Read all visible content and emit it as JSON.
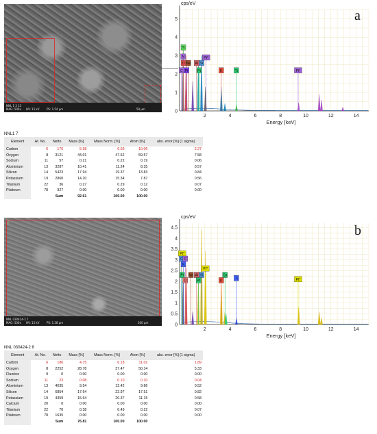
{
  "panel_a": {
    "letter": "a",
    "sem": {
      "footer": [
        "NNL 1 3 13",
        "MAG: 500x",
        "HV: 15 kV",
        "PS: 1.54 µm"
      ],
      "scale": "50 µm"
    },
    "table_caption": "NNL1 7",
    "headers": [
      "Element",
      "At. No.",
      "Netto",
      "Mass [%]",
      "Mass Norm. [%]",
      "Atom [%]",
      "abs. error [%] (1 sigma)"
    ],
    "rows": [
      {
        "el": "Carbon",
        "z": "6",
        "netto": "176",
        "mass": "5.58",
        "norm": "6.03",
        "atom": "10.06",
        "err": "2.27",
        "red": true
      },
      {
        "el": "Oxygen",
        "z": "8",
        "netto": "3121",
        "mass": "44.01",
        "norm": "47.52",
        "atom": "59.57",
        "err": "7.58",
        "red": false
      },
      {
        "el": "Sodium",
        "z": "11",
        "netto": "57",
        "mass": "0.21",
        "norm": "0.22",
        "atom": "0.19",
        "err": "0.06",
        "red": false
      },
      {
        "el": "Aluminium",
        "z": "13",
        "netto": "3287",
        "mass": "10.41",
        "norm": "11.24",
        "atom": "8.35",
        "err": "0.57",
        "red": false
      },
      {
        "el": "Silicon",
        "z": "14",
        "netto": "5423",
        "mass": "17.94",
        "norm": "19.37",
        "atom": "13.83",
        "err": "0.84",
        "red": false
      },
      {
        "el": "Potassium",
        "z": "19",
        "netto": "2860",
        "mass": "14.20",
        "norm": "15.34",
        "atom": "7.87",
        "err": "0.56",
        "red": false
      },
      {
        "el": "Titanium",
        "z": "22",
        "netto": "36",
        "mass": "0.27",
        "norm": "0.29",
        "atom": "0.12",
        "err": "0.07",
        "red": false
      },
      {
        "el": "Platinum",
        "z": "78",
        "netto": "927",
        "mass": "0.00",
        "norm": "0.00",
        "atom": "0.00",
        "err": "0.00",
        "red": false
      }
    ],
    "sum": {
      "label": "Sum",
      "mass": "92.61",
      "norm": "100.00",
      "atom": "100.00"
    }
  },
  "panel_b": {
    "letter": "b",
    "sem": {
      "footer": [
        "NNL 030424-2 7",
        "MAG: 500x",
        "HV: 15 kV",
        "PS: 1.38 µm"
      ],
      "scale": "200 µm"
    },
    "table_caption": "NNL 030424-2 8",
    "headers": [
      "Element",
      "At. No.",
      "Netto",
      "Mass [%]",
      "Mass Norm. [%]",
      "Atom [%]",
      "abs. error [%] (1 sigma)"
    ],
    "rows": [
      {
        "el": "Carbon",
        "z": "6",
        "netto": "186",
        "mass": "4.75",
        "norm": "6.18",
        "atom": "11.02",
        "err": "1.89",
        "red": true
      },
      {
        "el": "Oxygen",
        "z": "8",
        "netto": "2252",
        "mass": "28.78",
        "norm": "37.47",
        "atom": "50.14",
        "err": "5.33",
        "red": false
      },
      {
        "el": "Fluorine",
        "z": "9",
        "netto": "0",
        "mass": "0.00",
        "norm": "0.00",
        "atom": "0.00",
        "err": "0.00",
        "red": false
      },
      {
        "el": "Sodium",
        "z": "11",
        "netto": "23",
        "mass": "0.08",
        "norm": "0.10",
        "atom": "0.10",
        "err": "0.04",
        "red": true
      },
      {
        "el": "Aluminium",
        "z": "13",
        "netto": "4035",
        "mass": "9.54",
        "norm": "12.42",
        "atom": "9.86",
        "err": "0.52",
        "red": false
      },
      {
        "el": "Silicon",
        "z": "14",
        "netto": "6854",
        "mass": "17.64",
        "norm": "22.97",
        "atom": "17.51",
        "err": "0.82",
        "red": false
      },
      {
        "el": "Potassium",
        "z": "19",
        "netto": "4359",
        "mass": "15.64",
        "norm": "20.37",
        "atom": "11.15",
        "err": "0.58",
        "red": false
      },
      {
        "el": "Calcium",
        "z": "20",
        "netto": "0",
        "mass": "0.00",
        "norm": "0.00",
        "atom": "0.00",
        "err": "0.00",
        "red": false
      },
      {
        "el": "Titanium",
        "z": "22",
        "netto": "70",
        "mass": "0.38",
        "norm": "0.49",
        "atom": "0.22",
        "err": "0.07",
        "red": false
      },
      {
        "el": "Platinum",
        "z": "78",
        "netto": "1635",
        "mass": "0.00",
        "norm": "0.00",
        "atom": "0.00",
        "err": "0.00",
        "red": false
      }
    ],
    "sum": {
      "label": "Sum",
      "mass": "76.81",
      "norm": "100.00",
      "atom": "100.00"
    }
  },
  "chart_data": [
    {
      "type": "line",
      "panel": "a",
      "title": "",
      "ylabel": "cps/eV",
      "xlabel": "Energy [keV]",
      "xlim": [
        0,
        15
      ],
      "ylim": [
        0,
        5.5
      ],
      "xticks": [
        2,
        4,
        6,
        8,
        10,
        12,
        14
      ],
      "yticks": [
        0,
        1,
        2,
        3,
        4,
        5
      ],
      "grid": true,
      "peaks": [
        {
          "x": 0.28,
          "y": 3.3,
          "color": "#555555"
        },
        {
          "x": 0.52,
          "y": 3.0,
          "color": "#d04040"
        },
        {
          "x": 1.04,
          "y": 1.6,
          "color": "#6a3db0"
        },
        {
          "x": 1.49,
          "y": 2.7,
          "color": "#1aa0a0"
        },
        {
          "x": 1.74,
          "y": 3.0,
          "color": "#0a78b4"
        },
        {
          "x": 2.05,
          "y": 1.3,
          "color": "#555555"
        },
        {
          "x": 3.31,
          "y": 1.3,
          "color": "#0a78b4"
        },
        {
          "x": 3.59,
          "y": 0.4,
          "color": "#0a78b4"
        },
        {
          "x": 4.51,
          "y": 0.35,
          "color": "#33aa33"
        },
        {
          "x": 9.44,
          "y": 0.45,
          "color": "#a040c0"
        },
        {
          "x": 11.07,
          "y": 0.9,
          "color": "#a040c0"
        },
        {
          "x": 11.25,
          "y": 0.6,
          "color": "#a040c0"
        },
        {
          "x": 12.94,
          "y": 0.2,
          "color": "#a040c0"
        }
      ],
      "markers": [
        {
          "label": "Ti",
          "x": 0.3,
          "y": 3.45,
          "bg": "#5cd65c"
        },
        {
          "label": "N",
          "x": 0.28,
          "y": 2.95,
          "bg": "#a066d8"
        },
        {
          "label": "O",
          "x": 0.3,
          "y": 2.6,
          "bg": "#e05050"
        },
        {
          "label": "Na",
          "x": 0.7,
          "y": 2.6,
          "bg": "#a0522d"
        },
        {
          "label": "Al",
          "x": 1.35,
          "y": 2.6,
          "bg": "#d06060"
        },
        {
          "label": "Si",
          "x": 1.75,
          "y": 2.6,
          "bg": "#5599dd"
        },
        {
          "label": "Pt*",
          "x": 2.1,
          "y": 2.9,
          "bg": "#a066d8"
        },
        {
          "label": "C",
          "x": 0.15,
          "y": 2.2,
          "bg": "#a066d8"
        },
        {
          "label": "Pt",
          "x": 0.55,
          "y": 2.2,
          "bg": "#7c3aed"
        },
        {
          "label": "Pt",
          "x": 1.55,
          "y": 2.2,
          "bg": "#2ecc71"
        },
        {
          "label": "K",
          "x": 3.3,
          "y": 2.2,
          "bg": "#e74c3c"
        },
        {
          "label": "Ti",
          "x": 4.5,
          "y": 2.2,
          "bg": "#2ecc71"
        },
        {
          "label": "Pt*",
          "x": 9.4,
          "y": 2.2,
          "bg": "#a066d8"
        }
      ]
    },
    {
      "type": "line",
      "panel": "b",
      "title": "",
      "ylabel": "cps/eV",
      "xlabel": "Energy [keV]",
      "xlim": [
        0,
        15
      ],
      "ylim": [
        0,
        4.7
      ],
      "xticks": [
        2,
        4,
        6,
        8,
        10,
        12,
        14
      ],
      "yticks": [
        0,
        0.5,
        1.0,
        1.5,
        2.0,
        2.5,
        3.0,
        3.5,
        4.0,
        4.5
      ],
      "grid": true,
      "peaks": [
        {
          "x": 0.28,
          "y": 2.4,
          "color": "#555555"
        },
        {
          "x": 0.52,
          "y": 2.6,
          "color": "#d04040"
        },
        {
          "x": 1.04,
          "y": 0.6,
          "color": "#6a3db0"
        },
        {
          "x": 1.49,
          "y": 2.0,
          "color": "#d4b400"
        },
        {
          "x": 1.74,
          "y": 4.4,
          "color": "#d4b400"
        },
        {
          "x": 2.05,
          "y": 3.4,
          "color": "#d4b400"
        },
        {
          "x": 3.31,
          "y": 1.9,
          "color": "#d4b400"
        },
        {
          "x": 3.59,
          "y": 0.6,
          "color": "#d4b400"
        },
        {
          "x": 3.69,
          "y": 0.5,
          "color": "#2ecc71"
        },
        {
          "x": 4.51,
          "y": 0.3,
          "color": "#1f3fd0"
        },
        {
          "x": 9.44,
          "y": 0.8,
          "color": "#d4b400"
        },
        {
          "x": 11.07,
          "y": 0.6,
          "color": "#d4b400"
        },
        {
          "x": 11.25,
          "y": 0.3,
          "color": "#d4b400"
        }
      ],
      "markers": [
        {
          "label": "Pt*",
          "x": 0.2,
          "y": 3.3,
          "bg": "#e0e000"
        },
        {
          "label": "C",
          "x": 0.15,
          "y": 3.05,
          "bg": "#5599dd"
        },
        {
          "label": "C",
          "x": 0.45,
          "y": 3.05,
          "bg": "#a066d8"
        },
        {
          "label": "N",
          "x": 0.3,
          "y": 2.8,
          "bg": "#4466ff"
        },
        {
          "label": "Pt",
          "x": 0.2,
          "y": 2.3,
          "bg": "#2ecc71"
        },
        {
          "label": "Na",
          "x": 0.9,
          "y": 2.3,
          "bg": "#a0522d"
        },
        {
          "label": "Al",
          "x": 1.35,
          "y": 2.3,
          "bg": "#d06060"
        },
        {
          "label": "Si",
          "x": 1.75,
          "y": 2.3,
          "bg": "#5599dd"
        },
        {
          "label": "Pt*",
          "x": 2.05,
          "y": 2.6,
          "bg": "#e0e000"
        },
        {
          "label": "Ca",
          "x": 3.6,
          "y": 2.3,
          "bg": "#2ecc71"
        },
        {
          "label": "Ti",
          "x": 4.5,
          "y": 2.15,
          "bg": "#4466ff"
        },
        {
          "label": "O",
          "x": 0.45,
          "y": 2.05,
          "bg": "#e07070"
        },
        {
          "label": "Pt",
          "x": 1.5,
          "y": 2.05,
          "bg": "#2ecc71"
        },
        {
          "label": "K",
          "x": 3.3,
          "y": 2.05,
          "bg": "#e74c3c"
        },
        {
          "label": "Pt*",
          "x": 9.4,
          "y": 2.1,
          "bg": "#e0e000"
        }
      ]
    }
  ]
}
